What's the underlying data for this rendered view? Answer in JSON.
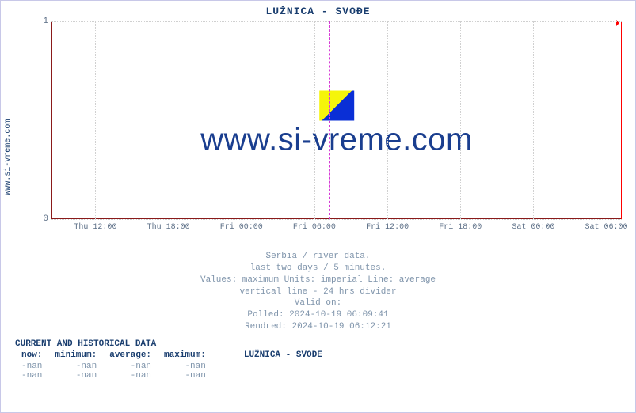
{
  "title": "LUŽNICA -  SVOĐE",
  "ylabel_link": "www.si-vreme.com",
  "chart": {
    "type": "line",
    "ylim": [
      0,
      1
    ],
    "yticks": [
      0,
      1
    ],
    "xticks": [
      "Thu 12:00",
      "Thu 18:00",
      "Fri 00:00",
      "Fri 06:00",
      "Fri 12:00",
      "Fri 18:00",
      "Sat 00:00",
      "Sat 06:00"
    ],
    "xtick_positions_pct": [
      7.7,
      20.5,
      33.3,
      46.1,
      58.9,
      71.7,
      84.5,
      97.3
    ],
    "grid_color": "#d0d0d0",
    "axis_color": "#8a1a1a",
    "divider_24h_pct": 48.7,
    "divider_color": "#d63ad6",
    "end_arrow_color": "#ff0000",
    "background_color": "#ffffff",
    "series": []
  },
  "watermark": {
    "text": "www.si-vreme.com",
    "logo_colors": [
      "#f5f50a",
      "#0a2fd6"
    ],
    "text_color": "#1a3e8f"
  },
  "meta": {
    "line1": "Serbia / river data.",
    "line2": "last two days / 5 minutes.",
    "line3": "Values: maximum  Units: imperial  Line: average",
    "line4": "vertical line - 24 hrs  divider",
    "line5": "Valid on:",
    "line6": "Polled: 2024-10-19 06:09:41",
    "line7": "Rendred: 2024-10-19 06:12:21"
  },
  "historical": {
    "heading": "CURRENT AND HISTORICAL DATA",
    "columns": [
      "now:",
      "minimum:",
      "average:",
      "maximum:"
    ],
    "series_label": "LUŽNICA -  SVOĐE",
    "rows": [
      [
        "-nan",
        "-nan",
        "-nan",
        "-nan"
      ],
      [
        "-nan",
        "-nan",
        "-nan",
        "-nan"
      ]
    ]
  }
}
